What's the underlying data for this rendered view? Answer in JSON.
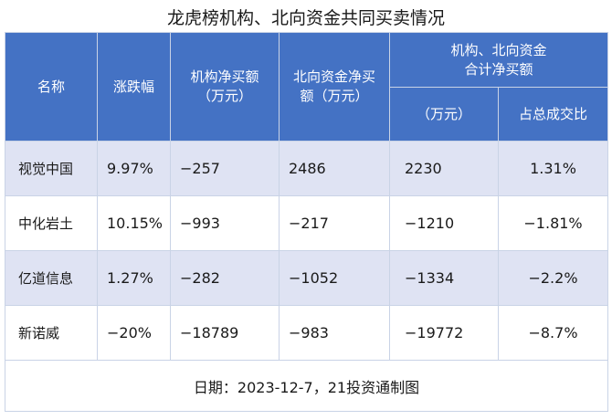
{
  "title": "龙虎榜机构、北向资金共同买卖情况",
  "headers": {
    "name": "名称",
    "change": "涨跌幅",
    "inst_line1": "机构净买额",
    "inst_line2": "（万元）",
    "north_line1": "北向资金净买",
    "north_line2": "额（万元）",
    "combined_line1": "机构、北向资金",
    "combined_line2": "合计净买额",
    "combined_sub_amount": "（万元）",
    "combined_sub_ratio": "占总成交比"
  },
  "rows": [
    {
      "name": "视觉中国",
      "change": "9.97%",
      "inst": "−257",
      "north": "2486",
      "total": "2230",
      "ratio": "1.31%"
    },
    {
      "name": "中化岩土",
      "change": "10.15%",
      "inst": "−993",
      "north": "−217",
      "total": "−1210",
      "ratio": "−1.81%"
    },
    {
      "name": "亿道信息",
      "change": "1.27%",
      "inst": "−282",
      "north": "−1052",
      "total": "−1334",
      "ratio": "−2.2%"
    },
    {
      "name": "新诺威",
      "change": "−20%",
      "inst": "−18789",
      "north": "−983",
      "total": "−19772",
      "ratio": "−8.7%"
    }
  ],
  "footer": "日期：2023-12-7，21投资通制图",
  "colors": {
    "header_bg": "#4472c4",
    "band_bg": "#dfe3f3",
    "header_text": "#ffffff"
  }
}
